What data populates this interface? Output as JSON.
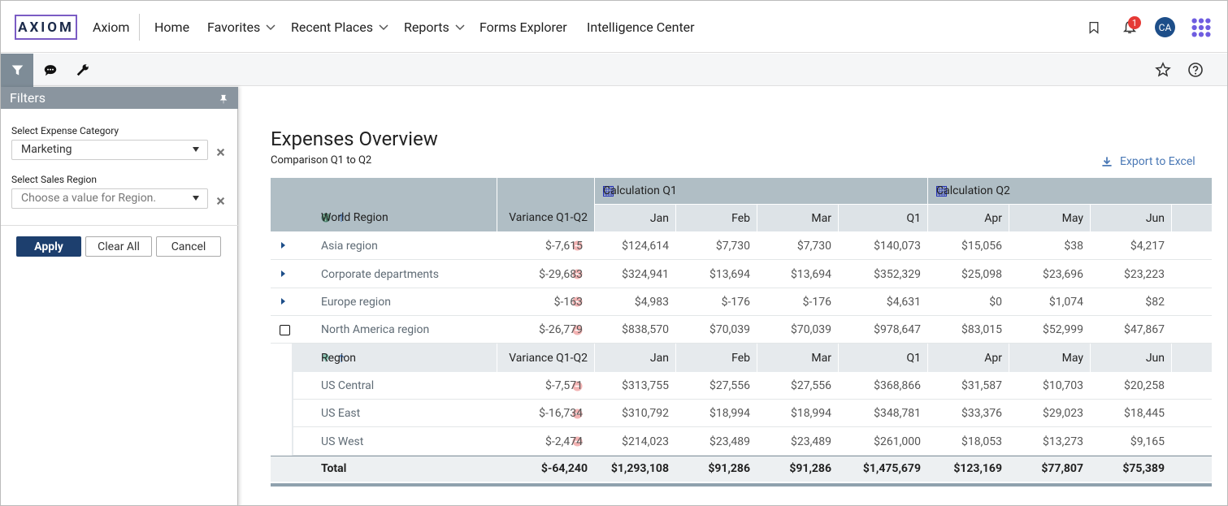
{
  "nav": {
    "logo": "AXIOM",
    "app": "Axiom",
    "items": [
      "Home",
      "Favorites",
      "Recent Places",
      "Reports",
      "Forms Explorer",
      "Intelligence Center"
    ],
    "notifications": 1,
    "avatar": "CA"
  },
  "filters": {
    "title": "Filters",
    "fields": [
      {
        "label": "Select Expense Category",
        "value": "Marketing"
      },
      {
        "label": "Select Sales Region",
        "placeholder": "Choose a value for Region."
      }
    ],
    "buttons": [
      "Apply",
      "Clear All",
      "Cancel"
    ]
  },
  "report": {
    "title": "Expenses Overview",
    "subtitle": "Comparison Q1 to Q2",
    "export": "Export to Excel",
    "groups": [
      "Calculation Q1",
      "Calculation Q2"
    ],
    "columns": [
      "World Region",
      "Variance Q1-Q2",
      "Jan",
      "Feb",
      "Mar",
      "Q1",
      "Apr",
      "May",
      "Jun"
    ],
    "rows": [
      [
        "Asia region",
        "$-7,615",
        "$124,614",
        "$7,730",
        "$7,730",
        "$140,073",
        "$15,056",
        "$38",
        "$4,217"
      ],
      [
        "Corporate departments",
        "$-29,683",
        "$324,941",
        "$13,694",
        "$13,694",
        "$352,329",
        "$25,098",
        "$23,696",
        "$23,223"
      ],
      [
        "Europe region",
        "$-163",
        "$4,983",
        "$-176",
        "$-176",
        "$4,631",
        "$0",
        "$1,074",
        "$82"
      ],
      [
        "North America region",
        "$-26,779",
        "$838,570",
        "$70,039",
        "$70,039",
        "$978,647",
        "$83,015",
        "$52,999",
        "$47,867"
      ]
    ],
    "sub_columns": [
      "Region",
      "Variance Q1-Q2",
      "Jan",
      "Feb",
      "Mar",
      "Q1",
      "Apr",
      "May",
      "Jun"
    ],
    "sub_rows": [
      [
        "US Central",
        "$-7,571",
        "$313,755",
        "$27,556",
        "$27,556",
        "$368,866",
        "$31,587",
        "$10,703",
        "$20,258"
      ],
      [
        "US East",
        "$-16,734",
        "$310,792",
        "$18,994",
        "$18,994",
        "$348,781",
        "$33,376",
        "$29,023",
        "$18,445"
      ],
      [
        "US West",
        "$-2,474",
        "$214,023",
        "$23,489",
        "$23,489",
        "$261,000",
        "$18,053",
        "$13,273",
        "$9,165"
      ]
    ],
    "total": [
      "Total",
      "$-64,240",
      "$1,293,108",
      "$91,286",
      "$91,286",
      "$1,475,679",
      "$123,169",
      "$77,807",
      "$75,389"
    ]
  }
}
